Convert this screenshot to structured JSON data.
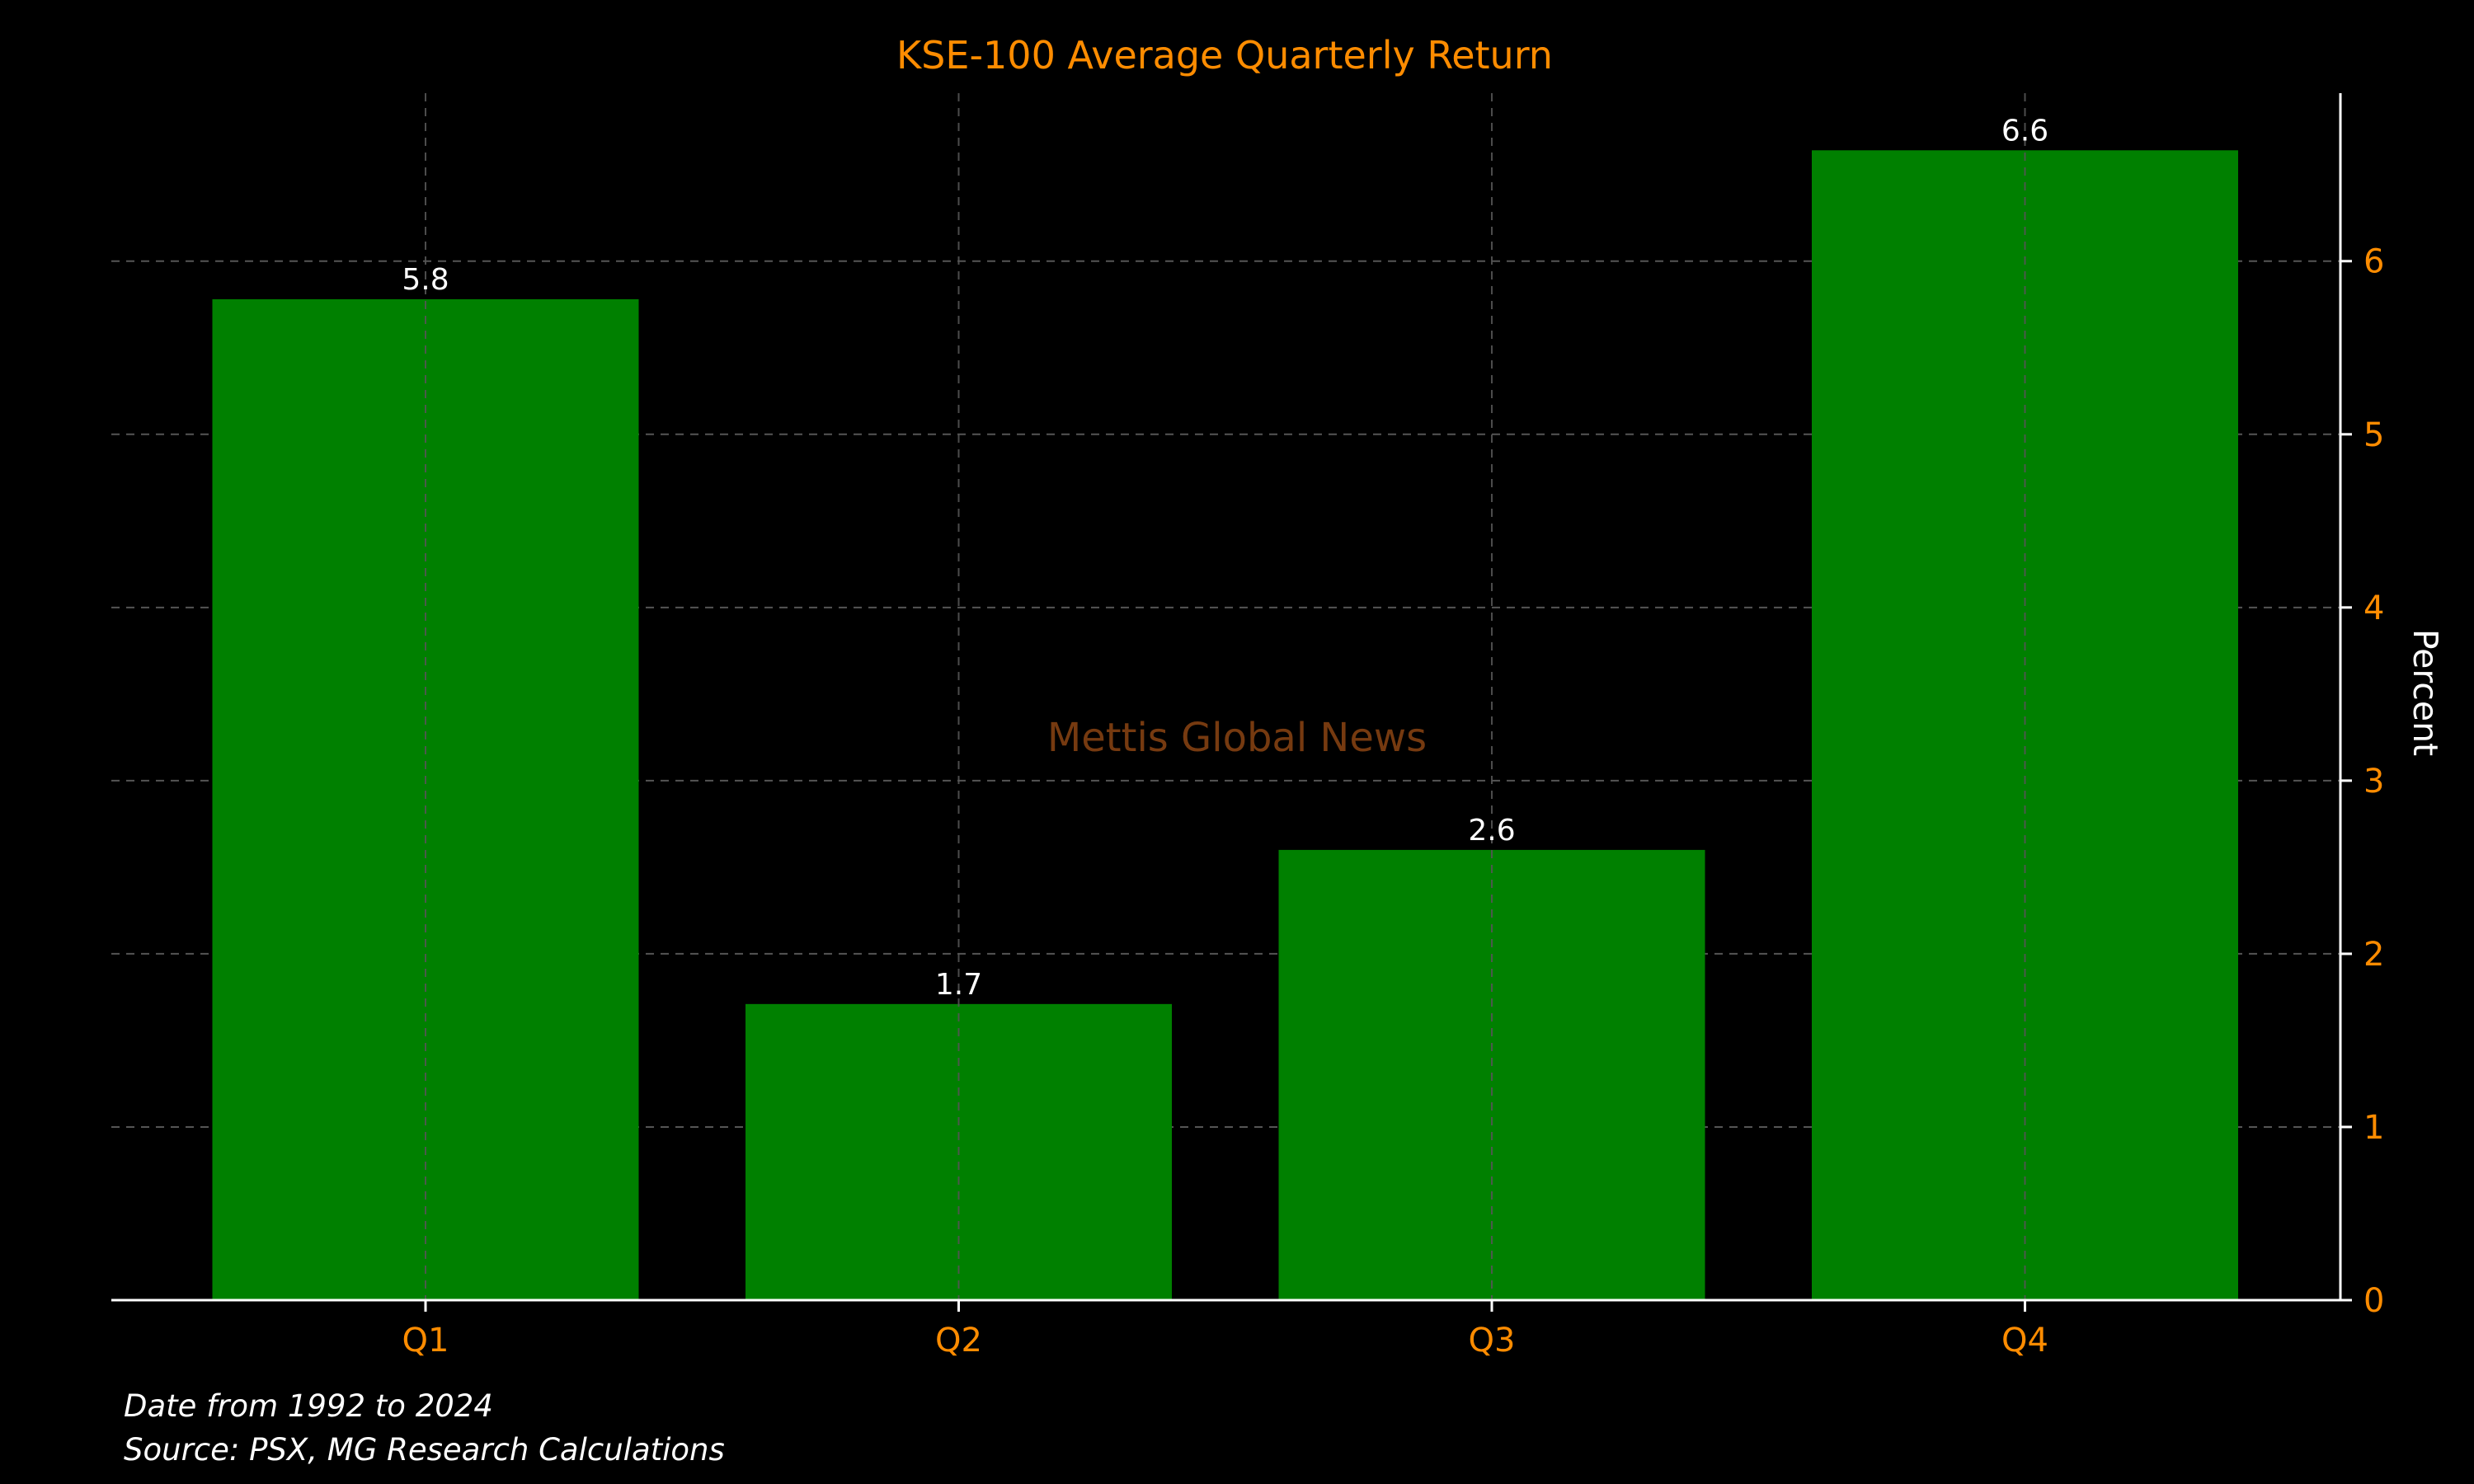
{
  "chart_data": {
    "type": "bar",
    "title": "KSE-100 Average Quarterly Return",
    "categories": [
      "Q1",
      "Q2",
      "Q3",
      "Q4"
    ],
    "values": [
      5.78,
      1.71,
      2.6,
      6.64
    ],
    "data_labels": [
      "5.8",
      "1.7",
      "2.6",
      "6.6"
    ],
    "xlabel": "",
    "ylabel": "Percent",
    "ylim": [
      0,
      6.97
    ],
    "yticks": [
      0,
      1,
      2,
      3,
      4,
      5,
      6
    ],
    "y_axis_side": "right",
    "grid": true,
    "legend": "none",
    "watermark": "Mettis Global News",
    "colors": {
      "background": "#000000",
      "bar": "#008000",
      "title": "#ff8c00",
      "tick_labels": "#ff8c00",
      "axis_label": "#ffffff",
      "data_labels": "#ffffff",
      "grid": "#555555",
      "watermark": "#8b4513"
    }
  },
  "notes": {
    "line1": "Date from 1992 to 2024",
    "line2": "Source: PSX, MG Research Calculations"
  }
}
